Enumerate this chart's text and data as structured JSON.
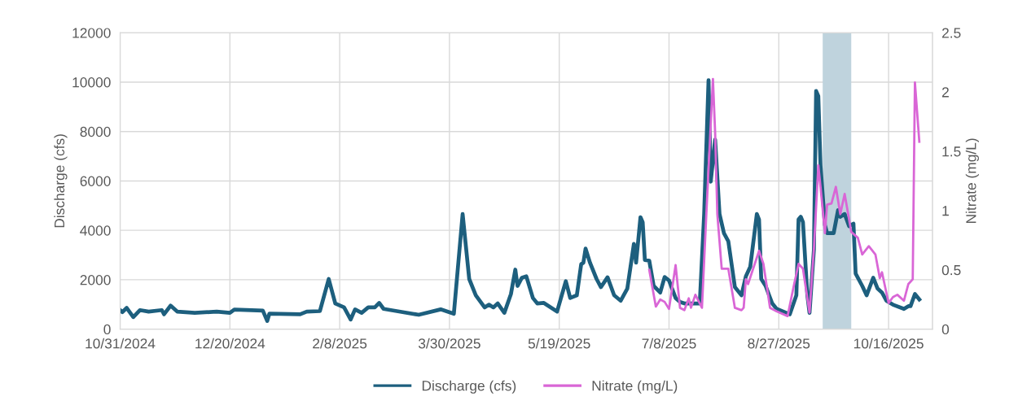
{
  "chart_data": {
    "type": "line",
    "ylabel": "Discharge (cfs)",
    "y2label": "Nitrate (mg/L)",
    "xlim": [
      "2024-10-31",
      "2025-11-05"
    ],
    "xticks": [
      {
        "value": "2024-10-31",
        "label": "10/31/2024"
      },
      {
        "value": "2024-12-20",
        "label": "12/20/2024"
      },
      {
        "value": "2025-02-08",
        "label": "2/8/2025"
      },
      {
        "value": "2025-03-30",
        "label": "3/30/2025"
      },
      {
        "value": "2025-05-19",
        "label": "5/19/2025"
      },
      {
        "value": "2025-07-08",
        "label": "7/8/2025"
      },
      {
        "value": "2025-08-27",
        "label": "8/27/2025"
      },
      {
        "value": "2025-10-16",
        "label": "10/16/2025"
      }
    ],
    "ylim": [
      0,
      12000
    ],
    "yticks": [
      0,
      2000,
      4000,
      6000,
      8000,
      10000,
      12000
    ],
    "y2lim": [
      0,
      2.5
    ],
    "y2ticks": [
      0,
      0.5,
      1,
      1.5,
      2,
      2.5
    ],
    "grid": true,
    "legend": "bottom",
    "line_style": "solid",
    "marker": "none",
    "bands": [
      {
        "axis": "x",
        "from": "2025-09-16",
        "to": "2025-09-29",
        "color": "#bfd3dd"
      }
    ],
    "series": [
      {
        "name": "Discharge (cfs)",
        "color": "#1d5f7e",
        "x": [
          "2024-10-31",
          "2024-11-01",
          "2024-11-03",
          "2024-11-06",
          "2024-11-09",
          "2024-11-13",
          "2024-11-19",
          "2024-11-20",
          "2024-11-23",
          "2024-11-26",
          "2024-12-04",
          "2024-12-14",
          "2024-12-20",
          "2024-12-22",
          "2025-01-04",
          "2025-01-06",
          "2025-01-07",
          "2025-01-21",
          "2025-01-24",
          "2025-01-30",
          "2025-02-03",
          "2025-02-06",
          "2025-02-10",
          "2025-02-13",
          "2025-02-15",
          "2025-02-18",
          "2025-02-21",
          "2025-02-24",
          "2025-02-26",
          "2025-02-28",
          "2025-03-06",
          "2025-03-16",
          "2025-03-26",
          "2025-04-01",
          "2025-04-05",
          "2025-04-08",
          "2025-04-11",
          "2025-04-15",
          "2025-04-17",
          "2025-04-19",
          "2025-04-21",
          "2025-04-24",
          "2025-04-27",
          "2025-04-29",
          "2025-04-30",
          "2025-05-02",
          "2025-05-04",
          "2025-05-07",
          "2025-05-09",
          "2025-05-12",
          "2025-05-18",
          "2025-05-22",
          "2025-05-24",
          "2025-05-27",
          "2025-05-29",
          "2025-05-30",
          "2025-05-31",
          "2025-06-02",
          "2025-06-05",
          "2025-06-07",
          "2025-06-10",
          "2025-06-13",
          "2025-06-16",
          "2025-06-19",
          "2025-06-22",
          "2025-06-23",
          "2025-06-25",
          "2025-06-26",
          "2025-06-27",
          "2025-06-29",
          "2025-07-01",
          "2025-07-04",
          "2025-07-06",
          "2025-07-08",
          "2025-07-11",
          "2025-07-13",
          "2025-07-15",
          "2025-07-22",
          "2025-07-24",
          "2025-07-26",
          "2025-07-27",
          "2025-07-29",
          "2025-07-31",
          "2025-08-02",
          "2025-08-04",
          "2025-08-07",
          "2025-08-10",
          "2025-08-12",
          "2025-08-14",
          "2025-08-17",
          "2025-08-18",
          "2025-08-19",
          "2025-08-21",
          "2025-08-24",
          "2025-08-26",
          "2025-09-01",
          "2025-09-04",
          "2025-09-05",
          "2025-09-06",
          "2025-09-07",
          "2025-09-09",
          "2025-09-10",
          "2025-09-12",
          "2025-09-13",
          "2025-09-14",
          "2025-09-15",
          "2025-09-17",
          "2025-09-18",
          "2025-09-21",
          "2025-09-23",
          "2025-09-24",
          "2025-09-26",
          "2025-09-28",
          "2025-09-30",
          "2025-10-01",
          "2025-10-04",
          "2025-10-06",
          "2025-10-09",
          "2025-10-11",
          "2025-10-13",
          "2025-10-15",
          "2025-10-18",
          "2025-10-23",
          "2025-10-25",
          "2025-10-26",
          "2025-10-28",
          "2025-10-30"
        ],
        "values": [
          770,
          690,
          860,
          490,
          770,
          710,
          770,
          600,
          950,
          710,
          660,
          710,
          660,
          790,
          750,
          330,
          630,
          600,
          710,
          730,
          2030,
          1040,
          880,
          390,
          800,
          660,
          880,
          880,
          1060,
          820,
          730,
          580,
          800,
          620,
          4660,
          2030,
          1370,
          880,
          990,
          880,
          1040,
          660,
          1420,
          2410,
          1750,
          2080,
          2140,
          1260,
          1040,
          1060,
          710,
          1940,
          1260,
          1370,
          2630,
          2690,
          3260,
          2690,
          2030,
          1700,
          2100,
          1370,
          1150,
          1640,
          3450,
          2690,
          4530,
          4330,
          2800,
          2770,
          1750,
          1480,
          2110,
          1970,
          1260,
          1100,
          1040,
          1040,
          4660,
          10080,
          5970,
          7670,
          4660,
          3890,
          3560,
          1700,
          1370,
          2140,
          2520,
          4660,
          4440,
          2030,
          1750,
          1040,
          820,
          600,
          1370,
          4440,
          4550,
          4330,
          1370,
          660,
          3230,
          9640,
          9430,
          6630,
          4220,
          3890,
          3890,
          4820,
          4550,
          4660,
          4170,
          4270,
          2250,
          1750,
          1370,
          2080,
          1640,
          1480,
          1150,
          990,
          820,
          930,
          930,
          1420,
          1200
        ]
      },
      {
        "name": "Nitrate (mg/L)",
        "color": "#d966d6",
        "axis": "y2",
        "x": [
          "2025-06-29",
          "2025-07-02",
          "2025-07-04",
          "2025-07-06",
          "2025-07-08",
          "2025-07-11",
          "2025-07-13",
          "2025-07-15",
          "2025-07-17",
          "2025-07-18",
          "2025-07-20",
          "2025-07-23",
          "2025-07-25",
          "2025-07-28",
          "2025-07-29",
          "2025-07-30",
          "2025-08-01",
          "2025-08-04",
          "2025-08-07",
          "2025-08-10",
          "2025-08-11",
          "2025-08-12",
          "2025-08-13",
          "2025-08-18",
          "2025-08-20",
          "2025-08-23",
          "2025-08-26",
          "2025-08-31",
          "2025-09-03",
          "2025-09-05",
          "2025-09-07",
          "2025-09-09",
          "2025-09-10",
          "2025-09-12",
          "2025-09-14",
          "2025-09-15",
          "2025-09-17",
          "2025-09-18",
          "2025-09-20",
          "2025-09-22",
          "2025-09-24",
          "2025-09-26",
          "2025-09-29",
          "2025-10-02",
          "2025-10-04",
          "2025-10-07",
          "2025-10-10",
          "2025-10-12",
          "2025-10-13",
          "2025-10-16",
          "2025-10-18",
          "2025-10-20",
          "2025-10-23",
          "2025-10-25",
          "2025-10-27",
          "2025-10-28",
          "2025-10-30"
        ],
        "values": [
          0.5,
          0.19,
          0.25,
          0.23,
          0.17,
          0.54,
          0.18,
          0.16,
          0.26,
          0.18,
          0.29,
          0.18,
          0.97,
          2.11,
          1.66,
          0.97,
          0.51,
          0.51,
          0.18,
          0.16,
          0.18,
          0.42,
          0.38,
          0.66,
          0.55,
          0.18,
          0.15,
          0.11,
          0.38,
          0.55,
          0.51,
          0.26,
          0.14,
          0.68,
          1.38,
          1.2,
          0.81,
          1.05,
          1.06,
          1.2,
          0.97,
          1.14,
          0.82,
          0.77,
          0.63,
          0.7,
          0.63,
          0.43,
          0.48,
          0.22,
          0.27,
          0.29,
          0.24,
          0.38,
          0.42,
          2.08,
          1.58
        ]
      }
    ]
  }
}
